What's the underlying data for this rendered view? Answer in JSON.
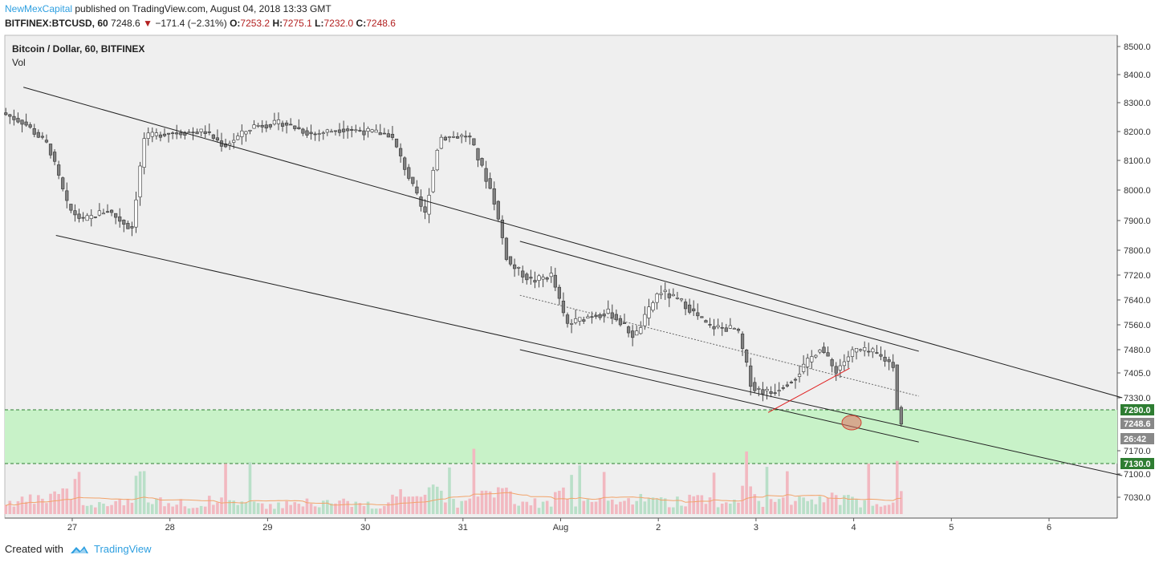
{
  "header": {
    "author": "NewMexCapital",
    "published_text": "published on TradingView.com, August 04, 2018 13:33 GMT",
    "symbol": "BITFINEX:BTCUSD, 60",
    "last": "7248.6",
    "change_arrow": "▼",
    "change": "−171.4 (−2.31%)",
    "open_label": "O:",
    "open": "7253.2",
    "high_label": "H:",
    "high": "7275.1",
    "low_label": "L:",
    "low": "7232.0",
    "close_label": "C:",
    "close": "7248.6"
  },
  "legend": {
    "title": "Bitcoin / Dollar, 60, BITFINEX",
    "indicator": "Vol"
  },
  "footer": {
    "created_with": "Created with",
    "brand": "TradingView",
    "logo_icon": "tradingview-logo-icon"
  },
  "chart_data": {
    "type": "candlestick",
    "interval": "60",
    "y_ticks": [
      "8500.0",
      "8400.0",
      "8300.0",
      "8200.0",
      "8100.0",
      "8000.0",
      "7900.0",
      "7800.0",
      "7720.0",
      "7640.0",
      "7560.0",
      "7480.0",
      "7405.0",
      "7330.0",
      "7170.0",
      "7100.0",
      "7030.0"
    ],
    "x_ticks": [
      "27",
      "28",
      "29",
      "30",
      "31",
      "Aug",
      "2",
      "3",
      "4",
      "5",
      "6"
    ],
    "price_badges": [
      {
        "label": "7290.0",
        "color": "#2e7d32"
      },
      {
        "label": "7248.6",
        "color": "#888888"
      },
      {
        "label": "26:42",
        "color": "#888888"
      },
      {
        "label": "7130.0",
        "color": "#2e7d32"
      }
    ],
    "support_zone": {
      "low": 7130.0,
      "high": 7290.0,
      "color": "#c8f2c8"
    },
    "colors": {
      "up": "#ffffff",
      "down": "#808080",
      "wick": "#444444",
      "vol_up": "#b9dfc8",
      "vol_down": "#f2b8c0",
      "vol_ma": "#f2a36a",
      "zone_line": "#2e7d32",
      "circle": "#e07060"
    },
    "trend_lines": [
      {
        "name": "outer-upper-channel",
        "from": [
          "26 12:00",
          8355
        ],
        "to": [
          "6 18:00",
          7330
        ]
      },
      {
        "name": "outer-lower-channel",
        "from": [
          "26 20:00",
          7850
        ],
        "to": [
          "6 18:00",
          7095
        ]
      },
      {
        "name": "inner-upper-channel",
        "from": [
          "31 14:00",
          7830
        ],
        "to": [
          "4 16:00",
          7475
        ]
      },
      {
        "name": "inner-lower-channel",
        "from": [
          "31 14:00",
          7480
        ],
        "to": [
          "4 16:00",
          7195
        ]
      },
      {
        "name": "inner-mid-dotted",
        "from": [
          "31 14:00",
          7655
        ],
        "to": [
          "4 16:00",
          7335
        ]
      },
      {
        "name": "red-wedge-line",
        "from": [
          "3 03:00",
          7282
        ],
        "to": [
          "3 23:00",
          7420
        ]
      }
    ]
  }
}
